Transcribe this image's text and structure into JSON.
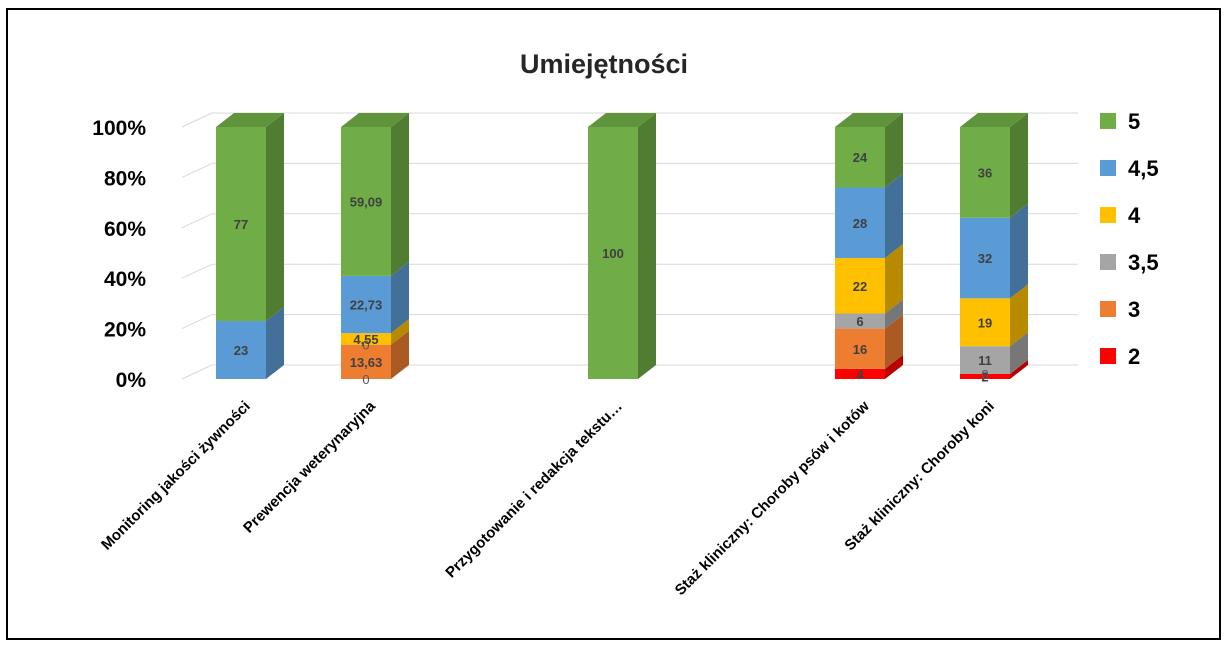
{
  "chart_data": {
    "type": "bar",
    "stacked": true,
    "percent_stacked": true,
    "three_d": true,
    "title": "Umiejętności",
    "xlabel": "",
    "ylabel": "",
    "ylim": [
      0,
      100
    ],
    "yticks": [
      "0%",
      "20%",
      "40%",
      "60%",
      "80%",
      "100%"
    ],
    "grid": true,
    "legend_position": "right",
    "categories": [
      "Monitoring jakości żywności",
      "Prewencja weterynaryjna",
      "Przygotowanie i redakcja tekstu…",
      "Staż kliniczny: Choroby psów i kotów",
      "Staż kliniczny: Choroby koni"
    ],
    "series": [
      {
        "name": "2",
        "color": "#ff0000",
        "values": [
          null,
          0,
          null,
          4,
          2
        ],
        "labels": [
          "",
          "0",
          "",
          "4",
          "2"
        ]
      },
      {
        "name": "3",
        "color": "#ed7d31",
        "values": [
          null,
          13.63,
          null,
          16,
          0
        ],
        "labels": [
          "",
          "13,63",
          "",
          "16",
          "0"
        ]
      },
      {
        "name": "3,5",
        "color": "#a5a5a5",
        "values": [
          null,
          0,
          null,
          6,
          11
        ],
        "labels": [
          "",
          "0",
          "",
          "6",
          "11"
        ]
      },
      {
        "name": "4",
        "color": "#ffc000",
        "values": [
          null,
          4.55,
          null,
          22,
          19
        ],
        "labels": [
          "",
          "4,55",
          "",
          "22",
          "19"
        ]
      },
      {
        "name": "4,5",
        "color": "#5b9bd5",
        "values": [
          23,
          22.73,
          null,
          28,
          32
        ],
        "labels": [
          "23",
          "22,73",
          "",
          "28",
          "32"
        ]
      },
      {
        "name": "5",
        "color": "#70ad47",
        "values": [
          77,
          59.09,
          100,
          24,
          36
        ],
        "labels": [
          "77",
          "59,09",
          "100",
          "24",
          "36"
        ]
      }
    ]
  }
}
